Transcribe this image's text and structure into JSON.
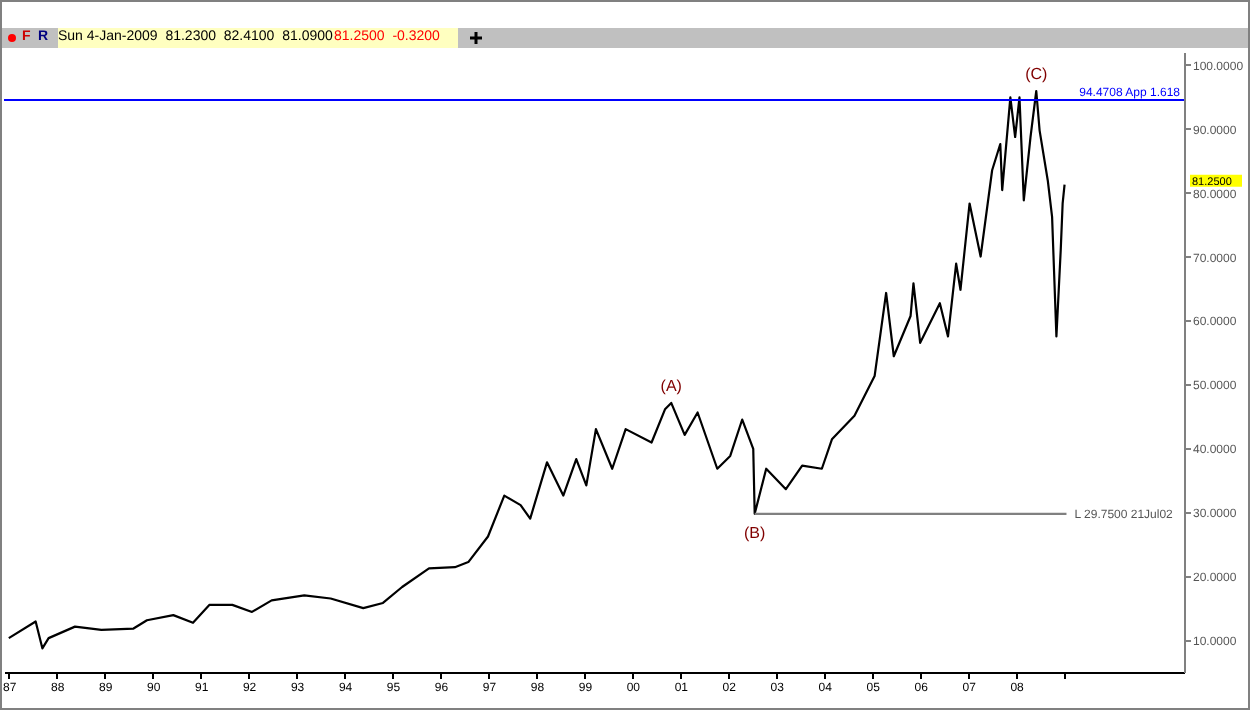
{
  "chart_data": {
    "type": "line",
    "series": [
      {
        "type": "line",
        "color": "#000000",
        "x": [
          1987.0,
          1987.56,
          1987.7,
          1987.83,
          1988.38,
          1988.93,
          1989.6,
          1989.88,
          1990.43,
          1990.84,
          1991.18,
          1991.66,
          1992.07,
          1992.48,
          1993.16,
          1993.71,
          1994.39,
          1994.8,
          1995.2,
          1995.76,
          1996.3,
          1996.58,
          1996.99,
          1997.33,
          1997.67,
          1997.87,
          1998.22,
          1998.56,
          1998.83,
          1999.04,
          1999.24,
          1999.58,
          1999.86,
          2000.4,
          2000.68,
          2000.81,
          2001.09,
          2001.36,
          2001.77,
          2002.04,
          2002.29,
          2002.52,
          2002.55,
          2002.79,
          2003.2,
          2003.54,
          2003.95,
          2004.16,
          2004.63,
          2005.05,
          2005.29,
          2005.45,
          2005.8,
          2005.86,
          2006.0,
          2006.41,
          2006.58,
          2006.75,
          2006.84,
          2007.03,
          2007.26,
          2007.5,
          2007.67,
          2007.71,
          2007.88,
          2007.98,
          2008.07,
          2008.16,
          2008.3,
          2008.42,
          2008.49,
          2008.66,
          2008.75,
          2008.84,
          2008.93,
          2008.97,
          2009.01
        ],
        "values": [
          10.3,
          12.9,
          8.7,
          10.3,
          12.1,
          11.6,
          11.8,
          13.1,
          13.9,
          12.7,
          15.5,
          15.5,
          14.4,
          16.2,
          17.0,
          16.5,
          15.0,
          15.8,
          18.3,
          21.2,
          21.4,
          22.2,
          26.2,
          32.6,
          31.1,
          29.0,
          37.8,
          32.6,
          38.3,
          34.2,
          43.0,
          36.8,
          43.0,
          40.9,
          46.1,
          47.1,
          42.1,
          45.6,
          36.8,
          38.8,
          44.5,
          39.9,
          29.75,
          36.8,
          33.6,
          37.3,
          36.8,
          41.4,
          45.1,
          51.3,
          64.3,
          54.4,
          60.7,
          65.8,
          56.5,
          62.7,
          57.5,
          68.9,
          64.8,
          78.3,
          70.0,
          83.5,
          87.6,
          80.4,
          94.9,
          88.7,
          94.9,
          78.8,
          88.7,
          95.9,
          89.7,
          81.9,
          76.2,
          57.5,
          71.0,
          78.3,
          81.25
        ]
      },
      {
        "type": "line",
        "color": "#808080",
        "x": [
          2002.55,
          2009.05
        ],
        "values": [
          29.75,
          29.75
        ]
      }
    ],
    "xlim": [
      1986.9,
      2011.5
    ],
    "xticks": [
      {
        "value": 1987,
        "label": "87"
      },
      {
        "value": 1988,
        "label": "88"
      },
      {
        "value": 1989,
        "label": "89"
      },
      {
        "value": 1990,
        "label": "90"
      },
      {
        "value": 1991,
        "label": "91"
      },
      {
        "value": 1992,
        "label": "92"
      },
      {
        "value": 1993,
        "label": "93"
      },
      {
        "value": 1994,
        "label": "94"
      },
      {
        "value": 1995,
        "label": "95"
      },
      {
        "value": 1996,
        "label": "96"
      },
      {
        "value": 1997,
        "label": "97"
      },
      {
        "value": 1998,
        "label": "98"
      },
      {
        "value": 1999,
        "label": "99"
      },
      {
        "value": 2000,
        "label": "00"
      },
      {
        "value": 2001,
        "label": "01"
      },
      {
        "value": 2002,
        "label": "02"
      },
      {
        "value": 2003,
        "label": "03"
      },
      {
        "value": 2004,
        "label": "04"
      },
      {
        "value": 2005,
        "label": "05"
      },
      {
        "value": 2006,
        "label": "06"
      },
      {
        "value": 2007,
        "label": "07"
      },
      {
        "value": 2008,
        "label": "08"
      },
      {
        "value": 2009,
        "label": null
      }
    ],
    "ylim": [
      5,
      102
    ],
    "yticks": [
      {
        "value": 10,
        "label": "10.0000"
      },
      {
        "value": 20,
        "label": "20.0000"
      },
      {
        "value": 30,
        "label": "30.0000"
      },
      {
        "value": 40,
        "label": "40.0000"
      },
      {
        "value": 50,
        "label": "50.0000"
      },
      {
        "value": 60,
        "label": "60.0000"
      },
      {
        "value": 70,
        "label": "70.0000"
      },
      {
        "value": 80,
        "label": "80.0000"
      },
      {
        "value": 90,
        "label": "90.0000"
      },
      {
        "value": 100,
        "label": "100.0000"
      }
    ],
    "ref_lines": [
      {
        "axis": "y",
        "value": 94.4708,
        "label": "94.4708 App 1.618",
        "color": "#0000ff"
      }
    ],
    "annotations": [
      "F",
      "R",
      "Sun 4-Jan-2009  81.2300  82.4100  81.0900",
      "81.2500  -0.3200",
      {
        "text": "(A)",
        "x": 2000.81,
        "y": 47.1
      },
      {
        "text": "(B)",
        "x": 2002.55,
        "y": 29.75
      },
      {
        "text": "(C)",
        "x": 2008.42,
        "y": 95.9
      },
      {
        "text": "L 29.7500 21Jul02",
        "x": 2009.05,
        "y": 29.75
      },
      "81.2500"
    ]
  }
}
